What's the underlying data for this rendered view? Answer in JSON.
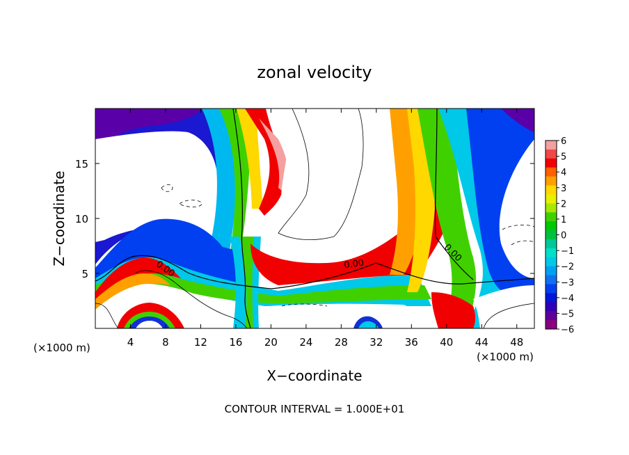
{
  "chart_data": {
    "type": "heatmap",
    "title": "zonal velocity",
    "xlabel": "X−coordinate",
    "ylabel": "Z−coordinate",
    "x_unit_left": "(×1000 m)",
    "x_unit_right": "(×1000 m)",
    "footer": "CONTOUR INTERVAL = 1.000E+01",
    "xlim": [
      0,
      50
    ],
    "ylim": [
      0,
      20
    ],
    "x_ticks": [
      4,
      8,
      12,
      16,
      20,
      24,
      28,
      32,
      36,
      40,
      44,
      48
    ],
    "y_ticks": [
      5,
      10,
      15
    ],
    "colorbar": {
      "min": -6,
      "max": 6,
      "ticks": [
        "6",
        "5",
        "4",
        "3",
        "2",
        "1",
        "0",
        "−1",
        "−2",
        "−3",
        "−4",
        "−5",
        "−6"
      ],
      "colors": [
        "#f4a0a0",
        "#f04848",
        "#f00000",
        "#ff6000",
        "#ffa000",
        "#ffd800",
        "#e8f000",
        "#a8e800",
        "#40d000",
        "#00c800",
        "#00c040",
        "#00c898",
        "#00e0c8",
        "#00c8e8",
        "#00a0f0",
        "#1070f0",
        "#0040f0",
        "#0018d8",
        "#3000b8",
        "#600098",
        "#8a0080"
      ]
    },
    "contour_labels": [
      {
        "text": "0.00",
        "x": 7.8,
        "z": 5.2
      },
      {
        "text": "0.00",
        "x": 29.5,
        "z": 5.6
      },
      {
        "text": "0.00",
        "x": 40.5,
        "z": 6.7
      }
    ]
  }
}
